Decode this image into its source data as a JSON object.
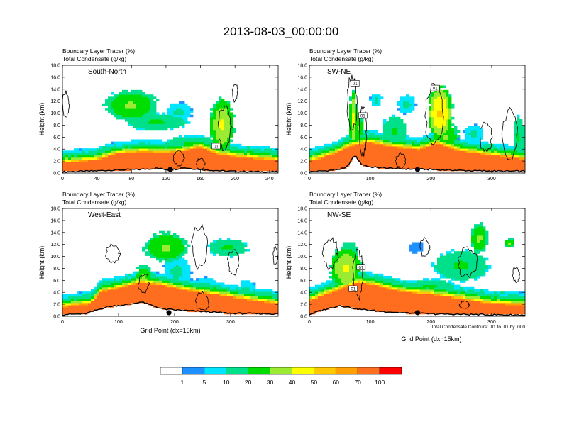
{
  "figure": {
    "title": "2013-08-03_00:00:00",
    "footnote": "Total Condensate Contours: .01 to .01 by .000"
  },
  "colors": {
    "levels": [
      "#ffffff",
      "#1e90ff",
      "#00e5ff",
      "#00e08a",
      "#00dd00",
      "#9aeb32",
      "#ffff00",
      "#ffc800",
      "#ffa000",
      "#ff6e1e",
      "#ff0000"
    ],
    "contour": "#000000",
    "terrain": "#000000"
  },
  "chart_data": [
    {
      "type": "heatmap",
      "panel_label": "South-North",
      "var_line1": "Boundary Layer Tracer   (%)",
      "var_line2": "Total Condensate   (g/kg)",
      "ylabel": "Height (km)",
      "xlabel": "",
      "ylim": [
        0,
        18
      ],
      "xlim": [
        0,
        250
      ],
      "x_ticks": [
        "0",
        "40",
        "80",
        "120",
        "160",
        "200",
        "240"
      ],
      "x_tick_values": [
        0,
        40,
        80,
        120,
        160,
        200,
        240
      ],
      "y_ticks": [
        "0.0",
        "2.0",
        "4.0",
        "6.0",
        "8.0",
        "10.0",
        "12.0",
        "14.0",
        "16.0",
        "18.0"
      ],
      "contour_labels": [
        {
          "text": "01",
          "x": 178,
          "z": 4.5
        }
      ],
      "marker_x": 125,
      "pbl_top": [
        [
          0,
          1.6
        ],
        [
          40,
          2.0
        ],
        [
          60,
          3.0
        ],
        [
          90,
          3.4
        ],
        [
          120,
          3.2
        ],
        [
          140,
          3.5
        ],
        [
          160,
          4.2
        ],
        [
          180,
          3.0
        ],
        [
          200,
          2.6
        ],
        [
          230,
          2.2
        ],
        [
          250,
          2.0
        ]
      ],
      "terrain": [
        [
          0,
          0.2
        ],
        [
          30,
          0.3
        ],
        [
          60,
          0.5
        ],
        [
          90,
          0.6
        ],
        [
          110,
          0.8
        ],
        [
          125,
          0.5
        ],
        [
          140,
          0.9
        ],
        [
          160,
          0.6
        ],
        [
          190,
          0.3
        ],
        [
          230,
          0.2
        ],
        [
          250,
          0.2
        ]
      ],
      "blobs": [
        {
          "x": 80,
          "z": 11.3,
          "rx": 30,
          "rz": 2.5,
          "v": 30
        },
        {
          "x": 110,
          "z": 8.5,
          "rx": 35,
          "rz": 1.4,
          "v": 20
        },
        {
          "x": 135,
          "z": 10.2,
          "rx": 15,
          "rz": 1.6,
          "v": 10
        },
        {
          "x": 185,
          "z": 8.0,
          "rx": 14,
          "rz": 4.5,
          "v": 40
        },
        {
          "x": 150,
          "z": 5.0,
          "rx": 30,
          "rz": 1.2,
          "v": 20
        },
        {
          "x": 60,
          "z": 2.8,
          "rx": 40,
          "rz": 0.9,
          "v": 20
        },
        {
          "x": 210,
          "z": 2.3,
          "rx": 30,
          "rz": 0.7,
          "v": 10
        }
      ],
      "contours": [
        {
          "x": 4,
          "z": 11.5,
          "rx": 4,
          "rz": 2.0
        },
        {
          "x": 200,
          "z": 13.5,
          "rx": 3,
          "rz": 1.5
        },
        {
          "x": 188,
          "z": 7.5,
          "rx": 8,
          "rz": 3.5
        },
        {
          "x": 135,
          "z": 2.5,
          "rx": 6,
          "rz": 1.2
        },
        {
          "x": 160,
          "z": 1.5,
          "rx": 5,
          "rz": 0.9
        }
      ]
    },
    {
      "type": "heatmap",
      "panel_label": "SW-NE",
      "var_line1": "Boundary Layer Tracer   (%)",
      "var_line2": "Total Condensate   (g/kg)",
      "ylabel": "Height (km)",
      "xlabel": "",
      "ylim": [
        0,
        18
      ],
      "xlim": [
        0,
        355
      ],
      "x_ticks": [
        "0",
        "100",
        "200",
        "300"
      ],
      "x_tick_values": [
        0,
        100,
        200,
        300
      ],
      "y_ticks": [
        "0.0",
        "2.0",
        "4.0",
        "6.0",
        "8.0",
        "10.0",
        "12.0",
        "14.0",
        "16.0",
        "18.0"
      ],
      "contour_labels": [
        {
          "text": "01",
          "x": 75,
          "z": 15.0
        },
        {
          "text": "01",
          "x": 88,
          "z": 9.6
        },
        {
          "text": "01",
          "x": 207,
          "z": 14.2
        }
      ],
      "marker_x": 178,
      "pbl_top": [
        [
          0,
          1.8
        ],
        [
          40,
          3.0
        ],
        [
          70,
          4.5
        ],
        [
          100,
          5.0
        ],
        [
          140,
          4.2
        ],
        [
          180,
          3.8
        ],
        [
          210,
          4.8
        ],
        [
          250,
          3.5
        ],
        [
          300,
          2.8
        ],
        [
          355,
          2.2
        ]
      ],
      "terrain": [
        [
          0,
          0.2
        ],
        [
          30,
          0.4
        ],
        [
          60,
          0.8
        ],
        [
          75,
          3.0
        ],
        [
          85,
          1.5
        ],
        [
          100,
          1.0
        ],
        [
          150,
          0.7
        ],
        [
          200,
          0.6
        ],
        [
          260,
          0.4
        ],
        [
          320,
          0.3
        ],
        [
          355,
          0.3
        ]
      ],
      "blobs": [
        {
          "x": 72,
          "z": 9.0,
          "rx": 6,
          "rz": 5.0,
          "v": 40
        },
        {
          "x": 80,
          "z": 7.5,
          "rx": 10,
          "rz": 2.5,
          "v": 30
        },
        {
          "x": 110,
          "z": 12.2,
          "rx": 10,
          "rz": 1.0,
          "v": 10
        },
        {
          "x": 140,
          "z": 7.0,
          "rx": 20,
          "rz": 2.5,
          "v": 20
        },
        {
          "x": 160,
          "z": 11.5,
          "rx": 15,
          "rz": 1.5,
          "v": 10
        },
        {
          "x": 215,
          "z": 10.0,
          "rx": 20,
          "rz": 4.5,
          "v": 50
        },
        {
          "x": 225,
          "z": 6.0,
          "rx": 20,
          "rz": 2.5,
          "v": 30
        },
        {
          "x": 270,
          "z": 6.5,
          "rx": 15,
          "rz": 1.5,
          "v": 10
        },
        {
          "x": 345,
          "z": 6.0,
          "rx": 10,
          "rz": 3.5,
          "v": 20
        },
        {
          "x": 30,
          "z": 3.0,
          "rx": 30,
          "rz": 1.0,
          "v": 20
        }
      ],
      "contours": [
        {
          "x": 70,
          "z": 11.5,
          "rx": 8,
          "rz": 4.5
        },
        {
          "x": 88,
          "z": 7.0,
          "rx": 6,
          "rz": 4.0
        },
        {
          "x": 205,
          "z": 9.5,
          "rx": 14,
          "rz": 5.0
        },
        {
          "x": 290,
          "z": 6.0,
          "rx": 10,
          "rz": 2.5
        },
        {
          "x": 330,
          "z": 6.5,
          "rx": 12,
          "rz": 4.0
        },
        {
          "x": 150,
          "z": 2.0,
          "rx": 8,
          "rz": 1.2
        }
      ]
    },
    {
      "type": "heatmap",
      "panel_label": "West-East",
      "var_line1": "Boundary Layer Tracer   (%)",
      "var_line2": "Total Condensate   (g/kg)",
      "ylabel": "Height (km)",
      "xlabel": "Grid Point (dx=15km)",
      "ylim": [
        0,
        18
      ],
      "xlim": [
        0,
        385
      ],
      "x_ticks": [
        "0",
        "100",
        "200",
        "300"
      ],
      "x_tick_values": [
        0,
        100,
        200,
        300
      ],
      "y_ticks": [
        "0.0",
        "2.0",
        "4.0",
        "6.0",
        "8.0",
        "10.0",
        "12.0",
        "14.0",
        "16.0",
        "18.0"
      ],
      "contour_labels": [],
      "marker_x": 190,
      "pbl_top": [
        [
          0,
          1.5
        ],
        [
          50,
          2.0
        ],
        [
          70,
          4.0
        ],
        [
          100,
          4.5
        ],
        [
          140,
          5.5
        ],
        [
          180,
          5.0
        ],
        [
          220,
          4.2
        ],
        [
          270,
          3.5
        ],
        [
          320,
          2.8
        ],
        [
          385,
          2.0
        ]
      ],
      "terrain": [
        [
          0,
          0.3
        ],
        [
          40,
          0.4
        ],
        [
          60,
          1.0
        ],
        [
          80,
          1.6
        ],
        [
          100,
          1.8
        ],
        [
          120,
          2.0
        ],
        [
          140,
          2.4
        ],
        [
          160,
          1.8
        ],
        [
          180,
          1.2
        ],
        [
          210,
          1.0
        ],
        [
          250,
          0.8
        ],
        [
          300,
          0.5
        ],
        [
          385,
          0.4
        ]
      ],
      "blobs": [
        {
          "x": 185,
          "z": 11.5,
          "rx": 40,
          "rz": 2.5,
          "v": 30
        },
        {
          "x": 295,
          "z": 11.5,
          "rx": 35,
          "rz": 1.5,
          "v": 20
        },
        {
          "x": 205,
          "z": 7.5,
          "rx": 25,
          "rz": 2.5,
          "v": 10
        },
        {
          "x": 145,
          "z": 6.5,
          "rx": 15,
          "rz": 2.0,
          "v": 30
        },
        {
          "x": 330,
          "z": 4.2,
          "rx": 15,
          "rz": 2.0,
          "v": 10
        },
        {
          "x": 255,
          "z": 5.0,
          "rx": 20,
          "rz": 1.5,
          "v": 10
        }
      ],
      "contours": [
        {
          "x": 90,
          "z": 10.5,
          "rx": 12,
          "rz": 1.5
        },
        {
          "x": 245,
          "z": 11.5,
          "rx": 15,
          "rz": 3.5
        },
        {
          "x": 305,
          "z": 9.0,
          "rx": 10,
          "rz": 2.0
        },
        {
          "x": 380,
          "z": 10.0,
          "rx": 4,
          "rz": 1.5
        },
        {
          "x": 145,
          "z": 5.5,
          "rx": 10,
          "rz": 1.5
        },
        {
          "x": 250,
          "z": 2.5,
          "rx": 12,
          "rz": 1.5
        }
      ]
    },
    {
      "type": "heatmap",
      "panel_label": "NW-SE",
      "var_line1": "Boundary Layer Tracer   (%)",
      "var_line2": "Total Condensate   (g/kg)",
      "ylabel": "Height (km)",
      "xlabel": "Grid Point (dx=15km)",
      "ylim": [
        0,
        18
      ],
      "xlim": [
        0,
        355
      ],
      "x_ticks": [
        "0",
        "100",
        "200",
        "300"
      ],
      "x_tick_values": [
        0,
        100,
        200,
        300
      ],
      "y_ticks": [
        "0.0",
        "2.0",
        "4.0",
        "6.0",
        "8.0",
        "10.0",
        "12.0",
        "14.0",
        "16.0",
        "18.0"
      ],
      "contour_labels": [
        {
          "text": "01",
          "x": 85,
          "z": 8.2
        },
        {
          "text": "01",
          "x": 72,
          "z": 4.6
        }
      ],
      "marker_x": 178,
      "pbl_top": [
        [
          0,
          2.5
        ],
        [
          40,
          4.0
        ],
        [
          80,
          5.5
        ],
        [
          110,
          5.0
        ],
        [
          150,
          4.0
        ],
        [
          200,
          3.5
        ],
        [
          250,
          2.8
        ],
        [
          300,
          2.0
        ],
        [
          355,
          1.8
        ]
      ],
      "terrain": [
        [
          0,
          0.3
        ],
        [
          20,
          1.0
        ],
        [
          50,
          1.8
        ],
        [
          80,
          1.2
        ],
        [
          110,
          0.9
        ],
        [
          150,
          0.6
        ],
        [
          200,
          0.4
        ],
        [
          260,
          0.3
        ],
        [
          355,
          0.2
        ]
      ],
      "blobs": [
        {
          "x": 60,
          "z": 8.0,
          "rx": 25,
          "rz": 3.5,
          "v": 40
        },
        {
          "x": 65,
          "z": 11.0,
          "rx": 15,
          "rz": 1.5,
          "v": 20
        },
        {
          "x": 250,
          "z": 8.5,
          "rx": 45,
          "rz": 2.5,
          "v": 20
        },
        {
          "x": 280,
          "z": 13.0,
          "rx": 15,
          "rz": 2.5,
          "v": 30
        },
        {
          "x": 175,
          "z": 11.5,
          "rx": 12,
          "rz": 1.0,
          "v": 1
        },
        {
          "x": 330,
          "z": 12.3,
          "rx": 8,
          "rz": 0.8,
          "v": 30
        },
        {
          "x": 200,
          "z": 5.0,
          "rx": 40,
          "rz": 1.2,
          "v": 20
        }
      ],
      "contours": [
        {
          "x": 35,
          "z": 10.5,
          "rx": 12,
          "rz": 2.5
        },
        {
          "x": 80,
          "z": 7.0,
          "rx": 8,
          "rz": 4.0
        },
        {
          "x": 190,
          "z": 11.5,
          "rx": 8,
          "rz": 1.5
        },
        {
          "x": 260,
          "z": 9.0,
          "rx": 15,
          "rz": 2.5
        },
        {
          "x": 340,
          "z": 7.0,
          "rx": 6,
          "rz": 1.2
        },
        {
          "x": 255,
          "z": 1.9,
          "rx": 8,
          "rz": 0.6
        }
      ]
    }
  ],
  "colorbar": {
    "labels": [
      "1",
      "5",
      "10",
      "20",
      "30",
      "40",
      "50",
      "60",
      "70",
      "100"
    ]
  }
}
